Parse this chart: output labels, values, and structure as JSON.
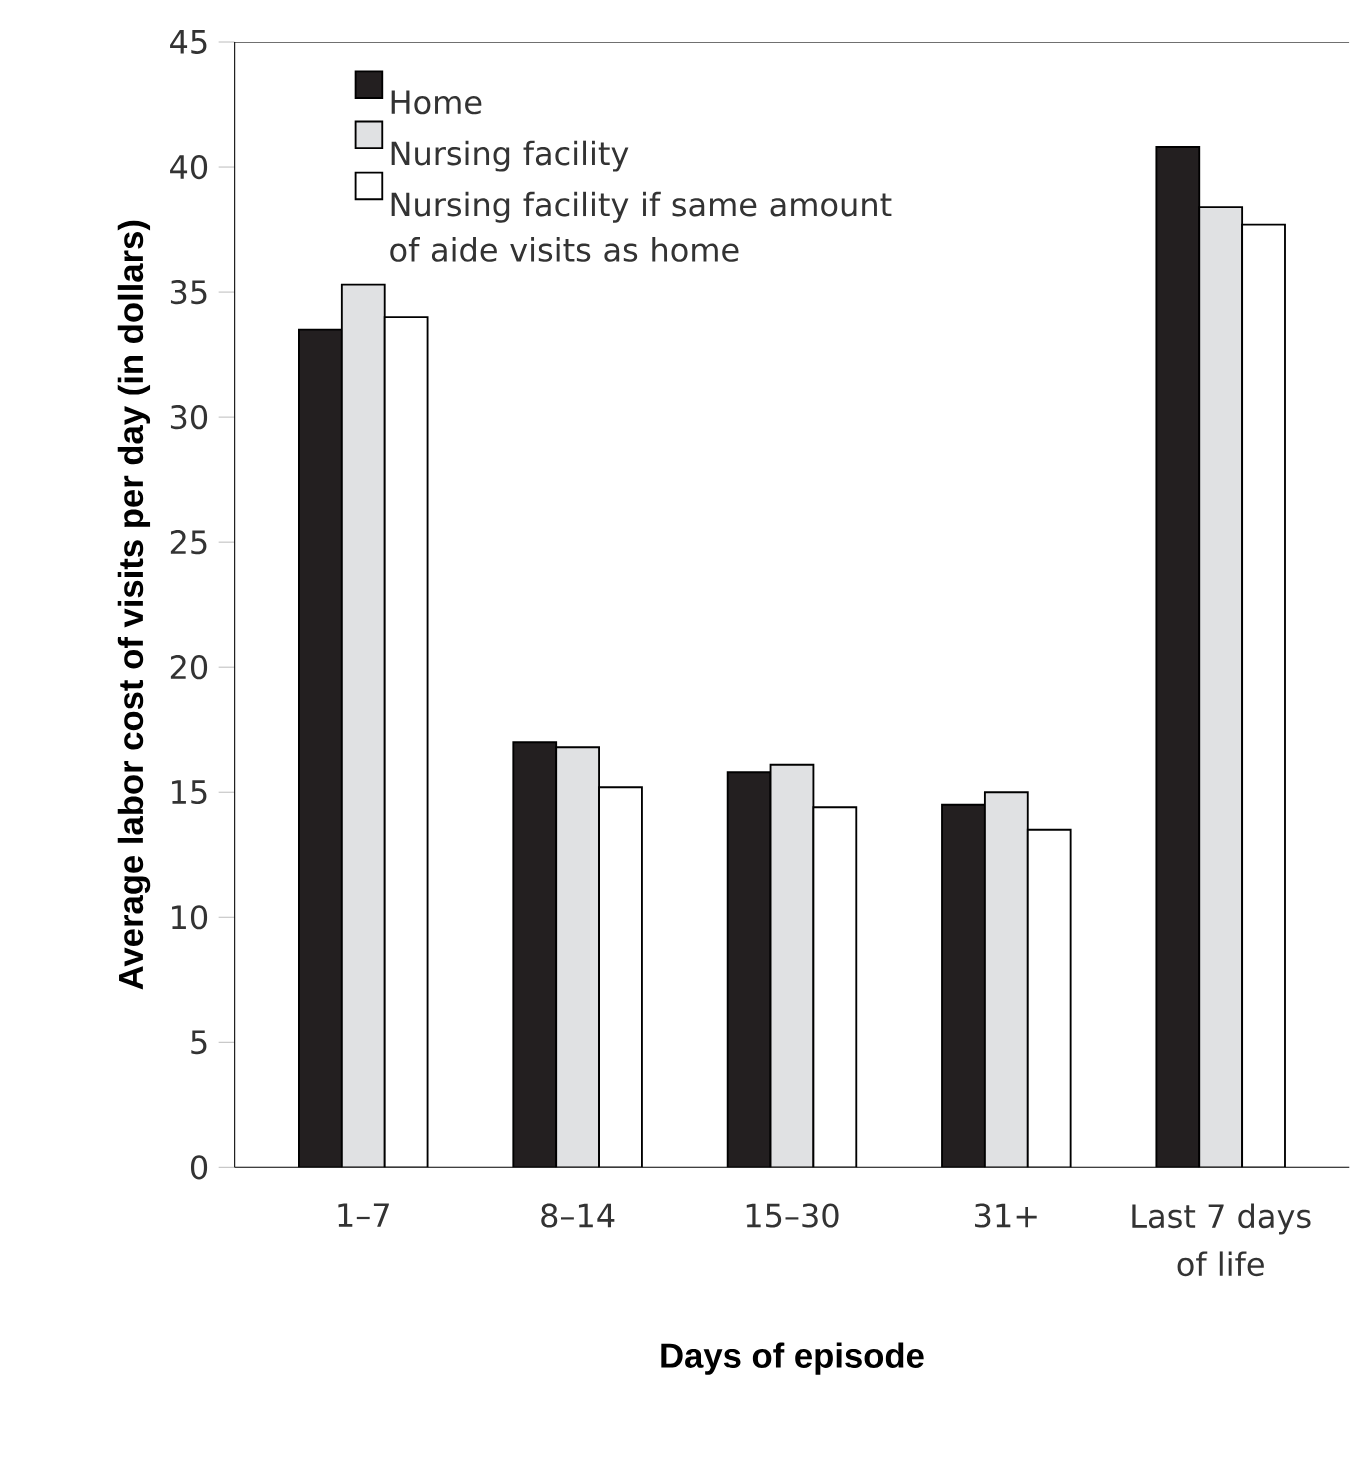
{
  "chart_data": {
    "type": "bar",
    "xlabel": "Days of episode",
    "ylabel": "Average labor cost of visits per day (in dollars)",
    "categories": [
      "1–7",
      "8–14",
      "15–30",
      "31+",
      "Last 7 days of life"
    ],
    "series": [
      {
        "name": "Home",
        "color": "#231f20",
        "values": [
          33.5,
          17.0,
          15.8,
          14.5,
          40.8
        ]
      },
      {
        "name": "Nursing facility",
        "color": "#e0e1e3",
        "values": [
          35.3,
          16.8,
          16.1,
          15.0,
          38.4
        ]
      },
      {
        "name": "Nursing facility if same amount of aide visits as home",
        "color": "#ffffff",
        "values": [
          34.0,
          15.2,
          14.4,
          13.5,
          37.7
        ]
      }
    ],
    "ylim": [
      0,
      45
    ],
    "yticks": [
      0,
      5,
      10,
      15,
      20,
      25,
      30,
      35,
      40,
      45
    ],
    "legend": "top left",
    "grid": false
  }
}
